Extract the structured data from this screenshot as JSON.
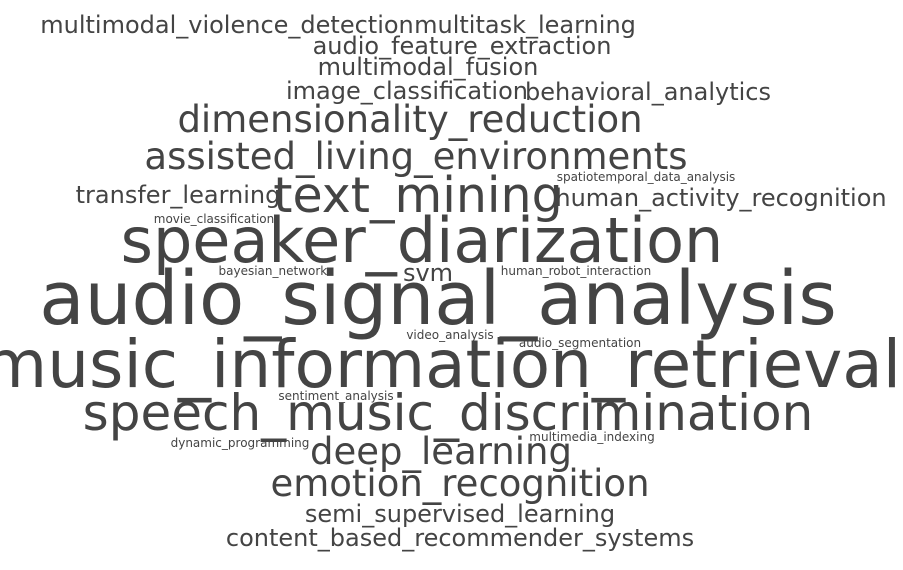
{
  "text_color": "#444444",
  "background": "#ffffff",
  "words": [
    {
      "text": "multimodal_violence_detection"
    },
    {
      "text": "multitask_learning"
    },
    {
      "text": "audio_feature_extraction"
    },
    {
      "text": "multimodal_fusion"
    },
    {
      "text": "image_classification"
    },
    {
      "text": "behavioral_analytics"
    },
    {
      "text": "dimensionality_reduction"
    },
    {
      "text": "assisted_living_environments"
    },
    {
      "text": "spatiotemporal_data_analysis"
    },
    {
      "text": "transfer_learning"
    },
    {
      "text": "text_mining"
    },
    {
      "text": "human_activity_recognition"
    },
    {
      "text": "movie_classification"
    },
    {
      "text": "speaker_diarization"
    },
    {
      "text": "bayesian_networks"
    },
    {
      "text": "svm"
    },
    {
      "text": "human_robot_interaction"
    },
    {
      "text": "audio_signal_analysis"
    },
    {
      "text": "video_analysis"
    },
    {
      "text": "audio_segmentation"
    },
    {
      "text": "music_information_retrieval"
    },
    {
      "text": "sentiment_analysis"
    },
    {
      "text": "speech_music_discrimination"
    },
    {
      "text": "dynamic_programming"
    },
    {
      "text": "multimedia_indexing"
    },
    {
      "text": "deep_learning"
    },
    {
      "text": "emotion_recognition"
    },
    {
      "text": "semi_supervised_learning"
    },
    {
      "text": "content_based_recommender_systems"
    }
  ]
}
